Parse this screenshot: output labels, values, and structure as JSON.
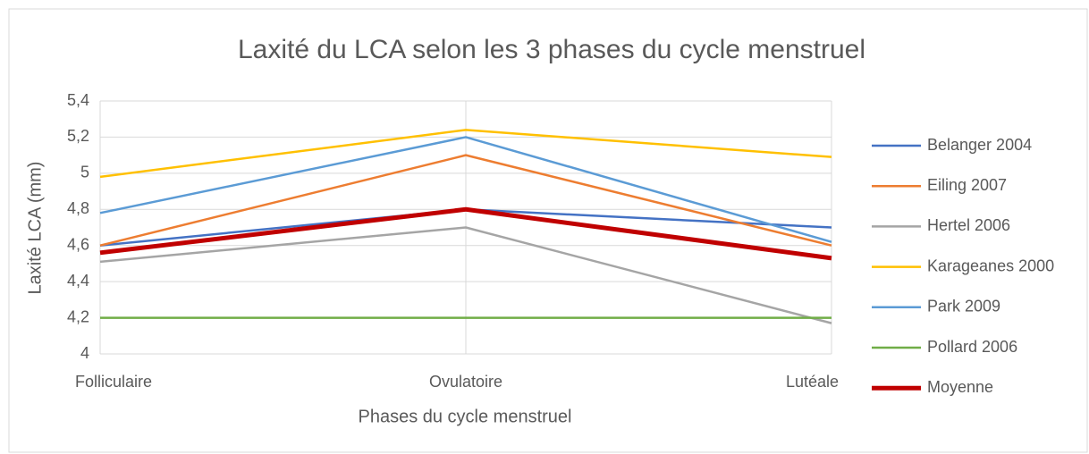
{
  "chart_data": {
    "type": "line",
    "title": "Laxité du LCA selon les 3 phases du cycle menstruel",
    "xlabel": "Phases du cycle menstruel",
    "ylabel": "Laxité LCA (mm)",
    "categories": [
      "Folliculaire",
      "Ovulatoire",
      "Lutéale"
    ],
    "series": [
      {
        "name": "Belanger 2004",
        "color": "#4472c4",
        "values": [
          4.6,
          4.8,
          4.7
        ]
      },
      {
        "name": "Eiling 2007",
        "color": "#ed7d31",
        "values": [
          4.6,
          5.1,
          4.6
        ]
      },
      {
        "name": "Hertel 2006",
        "color": "#a5a5a5",
        "values": [
          4.51,
          4.7,
          4.17
        ]
      },
      {
        "name": "Karageanes 2000",
        "color": "#ffc000",
        "values": [
          4.98,
          5.24,
          5.09
        ]
      },
      {
        "name": "Park 2009",
        "color": "#5b9bd5",
        "values": [
          4.78,
          5.2,
          4.62
        ]
      },
      {
        "name": "Pollard 2006",
        "color": "#70ad47",
        "values": [
          4.2,
          4.2,
          4.2
        ]
      },
      {
        "name": "Moyenne",
        "color": "#c00000",
        "values": [
          4.56,
          4.8,
          4.53
        ]
      }
    ],
    "ylim": [
      4,
      5.4
    ],
    "yticks": [
      4,
      {
        "value": 4.2,
        "label": "4,2"
      },
      {
        "value": 4.4,
        "label": "4,4"
      },
      {
        "value": 4.6,
        "label": "4,6"
      },
      {
        "value": 4.8,
        "label": "4,8"
      },
      5,
      {
        "value": 5.2,
        "label": "5,2"
      },
      {
        "value": 5.4,
        "label": "5,4"
      }
    ],
    "grid": true,
    "legend": "right"
  }
}
